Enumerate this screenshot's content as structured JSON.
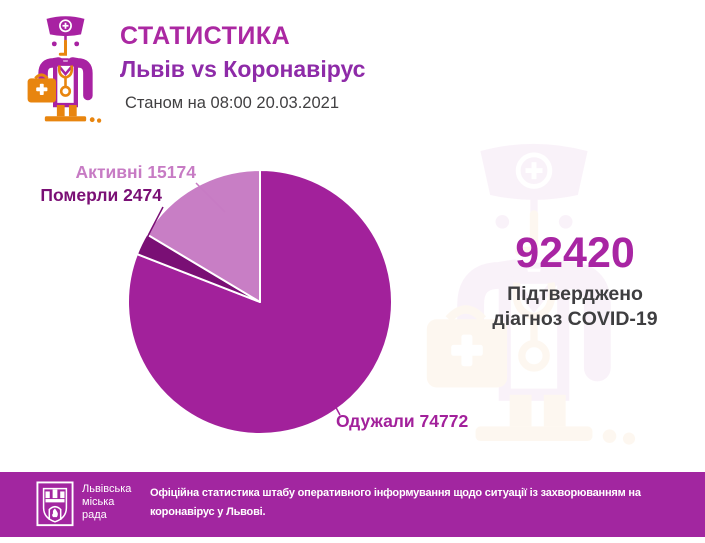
{
  "header": {
    "title": "СТАТИСТИКА",
    "subtitle": "Львів vs Коронавірус",
    "timestamp": "Станом на 08:00 20.03.2021"
  },
  "chart_data": {
    "type": "pie",
    "title": "Львів vs Коронавірус",
    "subtitle": "Станом на 08:00 20.03.2021",
    "total": 92420,
    "slices": [
      {
        "label": "Одужали",
        "value": 74772,
        "color": "#A2219B"
      },
      {
        "label": "Померли",
        "value": 2474,
        "color": "#7A0F75"
      },
      {
        "label": "Активні",
        "value": 15174,
        "color": "#C87EC5"
      }
    ],
    "start_angle_deg": 0,
    "direction": "clockwise",
    "legend_position": "callout-labels"
  },
  "callouts": {
    "active": "Активні 15174",
    "died": "Померли 2474",
    "recovered": "Одужали 74772"
  },
  "summary": {
    "value": "92420",
    "caption_line1": "Підтверджено",
    "caption_line2": "діагноз COVID-19"
  },
  "footer": {
    "org_line1": "Львівська",
    "org_line2": "міська",
    "org_line3": "рада",
    "text_line1": "Офіційна статистика штабу оперативного інформування щодо ситуації із захворюванням на",
    "text_line2": "коронавірус у Львові."
  },
  "icons": {
    "doctor": "doctor-with-medical-bag-icon",
    "crest": "lviv-city-council-crest"
  },
  "colors": {
    "title": "#AB28A2",
    "subtitle": "#8E2BA8",
    "text_dark": "#414042",
    "accent_magenta": "#A2219B",
    "light_orchid": "#C77BC4",
    "dark_purple": "#7A0F75",
    "value_magenta": "#A825A3",
    "footer_bar": "#A226A0",
    "doctor_magenta": "#A822A2",
    "doctor_orange": "#E8850F"
  }
}
